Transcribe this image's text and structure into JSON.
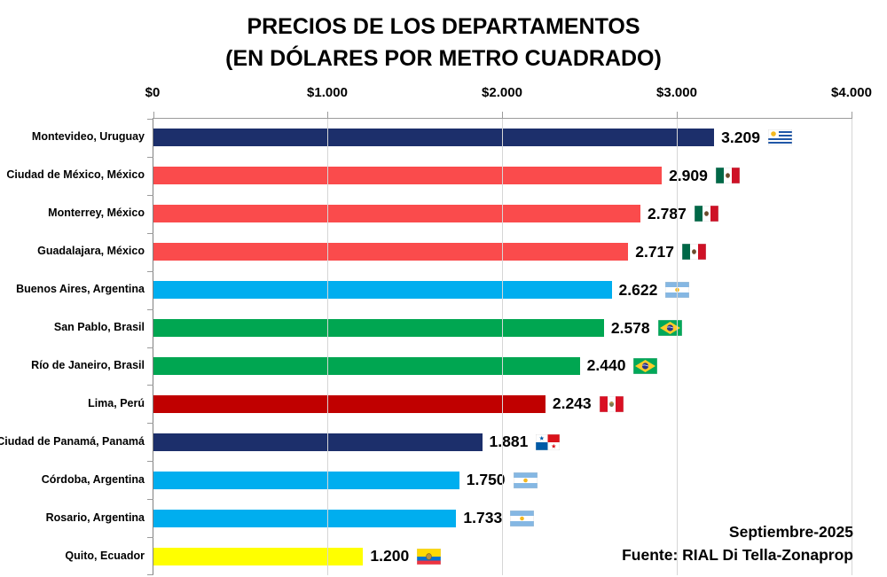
{
  "title": {
    "line1": "PRECIOS DE LOS DEPARTAMENTOS",
    "line2": "(EN DÓLARES POR METRO CUADRADO)"
  },
  "footer": {
    "date": "Septiembre-2025",
    "source": "Fuente: RIAL Di Tella-Zonaprop"
  },
  "chart_data": {
    "type": "bar",
    "orientation": "horizontal",
    "title": "PRECIOS DE LOS DEPARTAMENTOS (EN DÓLARES POR METRO CUADRADO)",
    "xlabel": "",
    "ylabel": "",
    "x_axis": {
      "position": "top",
      "min": 0,
      "max": 4000,
      "tick_interval": 1000,
      "ticks": [
        "$0",
        "$1.000",
        "$2.000",
        "$3.000",
        "$4.000"
      ],
      "grid": true
    },
    "categories": [
      "Montevideo, Uruguay",
      "Ciudad de México, México",
      "Monterrey, México",
      "Guadalajara, México",
      "Buenos Aires, Argentina",
      "San Pablo, Brasil",
      "Río de Janeiro, Brasil",
      "Lima, Perú",
      "Ciudad de Panamá, Panamá",
      "Córdoba, Argentina",
      "Rosario, Argentina",
      "Quito, Ecuador"
    ],
    "values": [
      3209,
      2909,
      2787,
      2717,
      2622,
      2578,
      2440,
      2243,
      1881,
      1750,
      1733,
      1200
    ],
    "value_labels": [
      "3.209",
      "2.909",
      "2.787",
      "2.717",
      "2.622",
      "2.578",
      "2.440",
      "2.243",
      "1.881",
      "1.750",
      "1.733",
      "1.200"
    ],
    "bar_colors": [
      "#1c2f6b",
      "#fa4b4c",
      "#fa4b4c",
      "#fa4b4c",
      "#00aeef",
      "#00a651",
      "#00a651",
      "#c00000",
      "#1c2f6b",
      "#00aeef",
      "#00aeef",
      "#ffff00"
    ],
    "flags": [
      "uruguay",
      "mexico",
      "mexico",
      "mexico",
      "argentina",
      "brazil",
      "brazil",
      "peru",
      "panama",
      "argentina",
      "argentina",
      "ecuador"
    ],
    "legend": "none"
  },
  "colors": {
    "navy": "#1c2f6b",
    "salmon_red": "#fa4b4c",
    "light_blue": "#00aeef",
    "green": "#00a651",
    "dark_red": "#c00000",
    "yellow": "#ffff00",
    "gridline": "#d6d6d6",
    "axis": "#808080",
    "text": "#000000"
  }
}
